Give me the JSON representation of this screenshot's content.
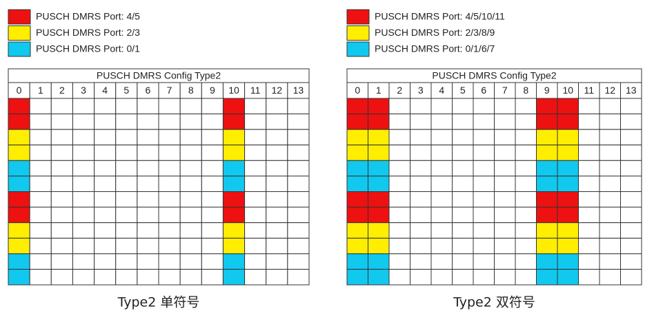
{
  "panels": [
    {
      "legend": [
        {
          "label": "PUSCH DMRS Port: 4/5",
          "color": "#ee1111"
        },
        {
          "label": "PUSCH DMRS Port: 2/3",
          "color": "#ffee00"
        },
        {
          "label": "PUSCH DMRS Port: 0/1",
          "color": "#11c8ee"
        }
      ],
      "grid_title": "PUSCH DMRS Config Type2",
      "columns": [
        "0",
        "1",
        "2",
        "3",
        "4",
        "5",
        "6",
        "7",
        "8",
        "9",
        "10",
        "11",
        "12",
        "13"
      ],
      "filled_columns": [
        0,
        10
      ],
      "row_colors": [
        "#ee1111",
        "#ee1111",
        "#ffee00",
        "#ffee00",
        "#11c8ee",
        "#11c8ee",
        "#ee1111",
        "#ee1111",
        "#ffee00",
        "#ffee00",
        "#11c8ee",
        "#11c8ee"
      ],
      "caption": "Type2 单符号"
    },
    {
      "legend": [
        {
          "label": "PUSCH DMRS Port: 4/5/10/11",
          "color": "#ee1111"
        },
        {
          "label": "PUSCH DMRS Port: 2/3/8/9",
          "color": "#ffee00"
        },
        {
          "label": "PUSCH DMRS Port: 0/1/6/7",
          "color": "#11c8ee"
        }
      ],
      "grid_title": "PUSCH DMRS Config Type2",
      "columns": [
        "0",
        "1",
        "2",
        "3",
        "4",
        "5",
        "6",
        "7",
        "8",
        "9",
        "10",
        "11",
        "12",
        "13"
      ],
      "filled_columns": [
        0,
        1,
        9,
        10
      ],
      "row_colors": [
        "#ee1111",
        "#ee1111",
        "#ffee00",
        "#ffee00",
        "#11c8ee",
        "#11c8ee",
        "#ee1111",
        "#ee1111",
        "#ffee00",
        "#ffee00",
        "#11c8ee",
        "#11c8ee"
      ],
      "caption": "Type2 双符号"
    }
  ]
}
